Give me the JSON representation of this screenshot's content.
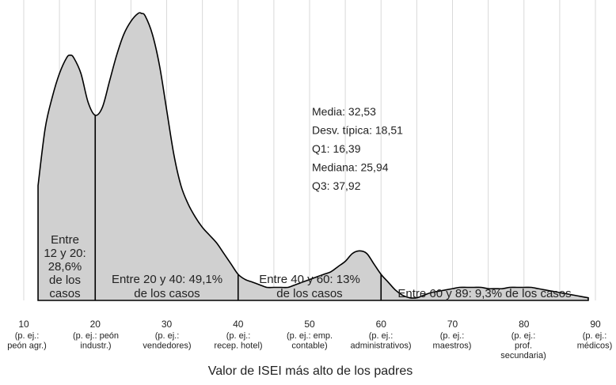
{
  "chart_data": {
    "type": "area",
    "xlabel": "Valor de ISEI más alto de los padres",
    "xlim": [
      10,
      90
    ],
    "grid": true,
    "x_ticks": [
      {
        "value": 10,
        "label": "10",
        "sublabel": [
          "(p. ej.:",
          "peón agr.)"
        ]
      },
      {
        "value": 20,
        "label": "20",
        "sublabel": [
          "(p. ej.: peón",
          "industr.)"
        ]
      },
      {
        "value": 30,
        "label": "30",
        "sublabel": [
          "(p. ej.:",
          "vendedores)"
        ]
      },
      {
        "value": 40,
        "label": "40",
        "sublabel": [
          "(p. ej.:",
          "recep. hotel)"
        ]
      },
      {
        "value": 50,
        "label": "50",
        "sublabel": [
          "(p. ej.: emp.",
          "contable)"
        ]
      },
      {
        "value": 60,
        "label": "60",
        "sublabel": [
          "(p. ej.:",
          "administrativos)"
        ]
      },
      {
        "value": 70,
        "label": "70",
        "sublabel": [
          "(p. ej.:",
          "maestros)"
        ]
      },
      {
        "value": 80,
        "label": "80",
        "sublabel": [
          "(p. ej.:",
          "prof.",
          "secundaria)"
        ]
      },
      {
        "value": 90,
        "label": "90",
        "sublabel": [
          "(p. ej.:",
          "médicos)"
        ]
      }
    ],
    "density": {
      "x": [
        12,
        13,
        14,
        15,
        16,
        16.5,
        17,
        18,
        19,
        20,
        21,
        22,
        23,
        24,
        25,
        26,
        26.5,
        27,
        28,
        29,
        30,
        31,
        32,
        33,
        34,
        35,
        36,
        37,
        38,
        39,
        40,
        41,
        42,
        43,
        44,
        45,
        46,
        47,
        48,
        49,
        50,
        51,
        52,
        53,
        54,
        55,
        56,
        57,
        58,
        59,
        60,
        61,
        62,
        63,
        64,
        65,
        66,
        67,
        68,
        69,
        70,
        71,
        72,
        73,
        74,
        75,
        76,
        77,
        78,
        79,
        80,
        81,
        82,
        83,
        84,
        85,
        86,
        87,
        88,
        89
      ],
      "y": [
        0.44,
        0.66,
        0.78,
        0.87,
        0.93,
        0.94,
        0.93,
        0.87,
        0.76,
        0.71,
        0.74,
        0.84,
        0.94,
        1.02,
        1.07,
        1.1,
        1.1,
        1.09,
        1.02,
        0.9,
        0.73,
        0.56,
        0.44,
        0.37,
        0.32,
        0.28,
        0.25,
        0.22,
        0.18,
        0.14,
        0.1,
        0.08,
        0.07,
        0.06,
        0.05,
        0.05,
        0.05,
        0.05,
        0.06,
        0.07,
        0.08,
        0.09,
        0.1,
        0.11,
        0.13,
        0.15,
        0.18,
        0.19,
        0.18,
        0.14,
        0.1,
        0.07,
        0.04,
        0.02,
        0.01,
        0.01,
        0.02,
        0.03,
        0.035,
        0.04,
        0.045,
        0.05,
        0.05,
        0.05,
        0.05,
        0.045,
        0.045,
        0.045,
        0.05,
        0.05,
        0.05,
        0.05,
        0.045,
        0.04,
        0.035,
        0.03,
        0.025,
        0.02,
        0.015,
        0.01
      ]
    },
    "segments": [
      {
        "from": 12,
        "to": 20,
        "label": [
          "Entre",
          "12 y 20:",
          "28,6%",
          "de los",
          "casos"
        ],
        "percent": 28.6
      },
      {
        "from": 20,
        "to": 40,
        "label": [
          "Entre 20 y 40: 49,1%",
          "de los casos"
        ],
        "percent": 49.1
      },
      {
        "from": 40,
        "to": 60,
        "label": [
          "Entre 40 y 60: 13%",
          "de los casos"
        ],
        "percent": 13
      },
      {
        "from": 60,
        "to": 89,
        "label": [
          "Entre 60 y 89: 9,3% de los casos"
        ],
        "percent": 9.3
      }
    ],
    "stats": [
      {
        "label": "Media",
        "value": "32,53"
      },
      {
        "label": "Desv. típica",
        "value": "18,51"
      },
      {
        "label": "Q1",
        "value": "16,39"
      },
      {
        "label": "Mediana",
        "value": "25,94"
      },
      {
        "label": "Q3",
        "value": "37,92"
      }
    ],
    "colors": {
      "fill": "#d0d0d0",
      "stroke": "#000000",
      "grid": "#d9d9d9"
    }
  }
}
